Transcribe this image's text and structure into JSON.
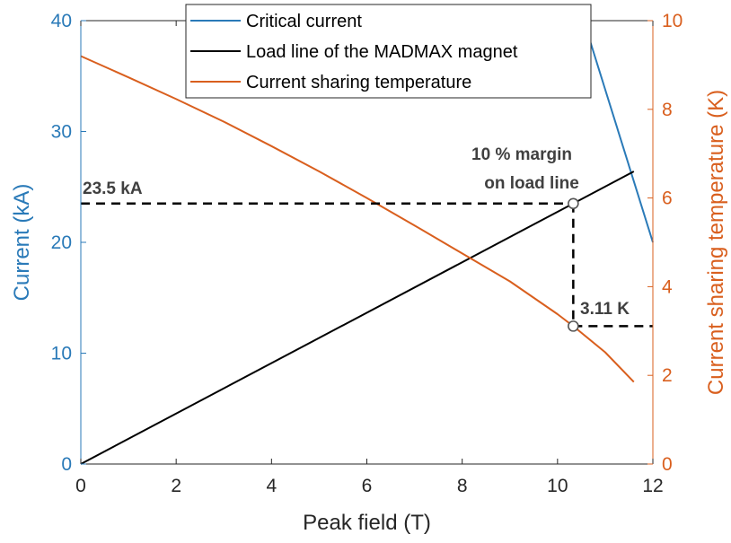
{
  "chart_data": {
    "type": "line",
    "xlabel": "Peak field (T)",
    "ylabel_left": "Current (kA)",
    "ylabel_right": "Current sharing temperature (K)",
    "xlim": [
      0,
      12
    ],
    "ylim_left": [
      0,
      40
    ],
    "ylim_right": [
      0,
      10
    ],
    "xticks": [
      0,
      2,
      4,
      6,
      8,
      10,
      12
    ],
    "yticks_left": [
      0,
      10,
      20,
      30,
      40
    ],
    "yticks_right": [
      0,
      2,
      4,
      6,
      8,
      10
    ],
    "grid": false,
    "legend_placement": "top-center",
    "series": [
      {
        "name": "Critical current",
        "axis": "left",
        "color": "#2a7ab8",
        "x": [
          10.55,
          12.0
        ],
        "y": [
          40.0,
          20.0
        ]
      },
      {
        "name": "Load line of the MADMAX magnet",
        "axis": "left",
        "color": "#000000",
        "x": [
          0.0,
          11.6
        ],
        "y": [
          0.0,
          26.4
        ]
      },
      {
        "name": "Current sharing temperature",
        "axis": "right",
        "color": "#d95f1e",
        "x": [
          0.0,
          1.0,
          2.0,
          3.0,
          4.0,
          5.0,
          6.0,
          7.0,
          8.0,
          9.0,
          10.0,
          10.33,
          11.0,
          11.6
        ],
        "y": [
          9.2,
          8.72,
          8.23,
          7.72,
          7.17,
          6.6,
          6.0,
          5.38,
          4.75,
          4.12,
          3.38,
          3.11,
          2.52,
          1.85
        ]
      }
    ],
    "annotations": [
      {
        "label": "23.5 kA",
        "x": 0.0,
        "y": 23.5,
        "axis": "left"
      },
      {
        "label": "10 % margin",
        "x": 10.33,
        "y": 23.5,
        "axis": "left"
      },
      {
        "label": "on load line",
        "x": 10.33,
        "y": 23.5,
        "axis": "left"
      },
      {
        "label": "3.11 K",
        "x": 12.0,
        "y": 3.11,
        "axis": "right"
      }
    ],
    "markers": [
      {
        "x": 10.33,
        "y": 23.5,
        "axis": "left"
      },
      {
        "x": 10.33,
        "y": 3.11,
        "axis": "right"
      }
    ],
    "dashed_guides": [
      {
        "from": [
          0.0,
          23.5
        ],
        "to": [
          10.33,
          23.5
        ],
        "axis": "left"
      },
      {
        "from": [
          10.33,
          23.5
        ],
        "to": [
          10.33,
          12.44
        ],
        "axis": "left"
      },
      {
        "from": [
          10.33,
          3.11
        ],
        "to": [
          12.0,
          3.11
        ],
        "axis": "right"
      }
    ],
    "colors": {
      "left_axis": "#2a7ab8",
      "right_axis": "#d95f1e",
      "x_axis": "#262626",
      "guides": "#000000"
    }
  }
}
